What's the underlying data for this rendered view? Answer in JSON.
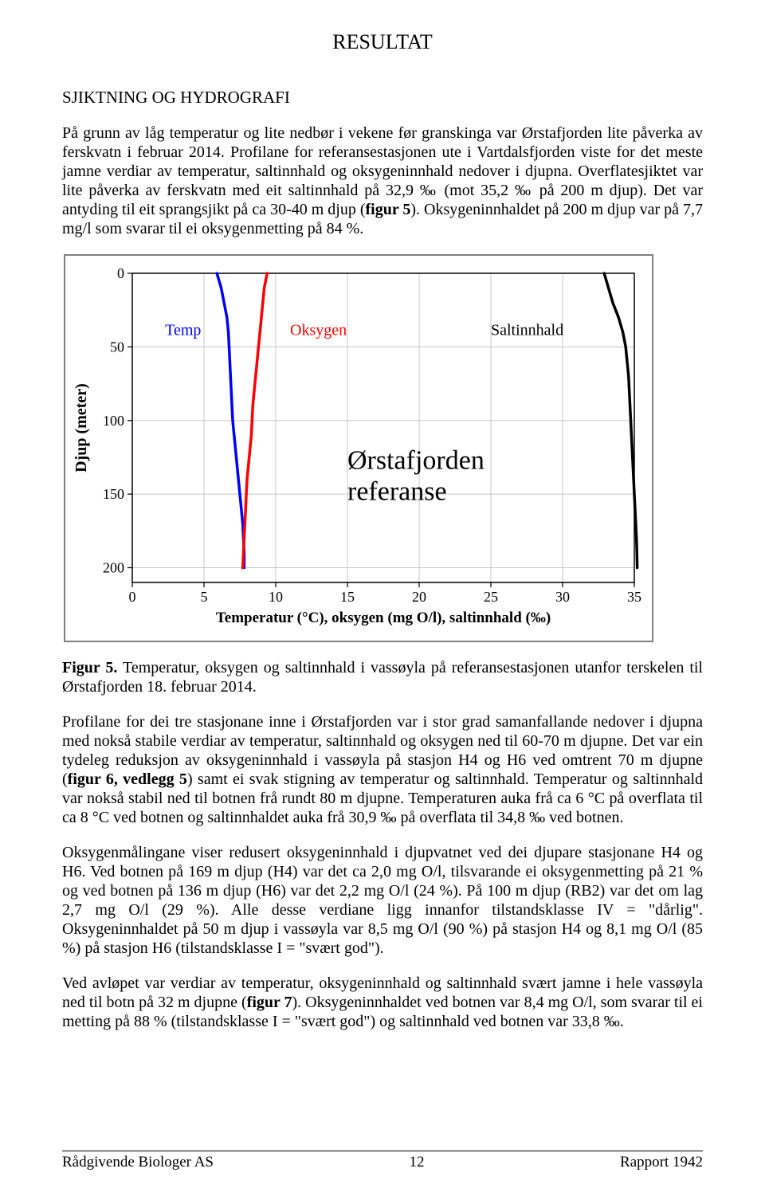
{
  "title_main": "RESULTAT",
  "section_heading": "SJIKTNING OG HYDROGRAFI",
  "para1": "På grunn av låg temperatur og lite nedbør i vekene før granskinga var Ørstafjorden lite påverka av ferskvatn i februar 2014. Profilane for referansestasjonen ute i Vartdalsfjorden viste for det meste jamne verdiar av temperatur, saltinnhald og oksygeninnhald nedover i djupna. Overflatesjiktet var lite påverka av ferskvatn med eit saltinnhald på 32,9 ‰ (mot 35,2 ‰ på 200 m djup). Det var antyding til eit sprangsjikt på ca 30-40 m djup (",
  "para1_fig": "figur 5",
  "para1_tail": "). Oksygeninnhaldet på 200 m djup var på 7,7 mg/l som svarar til ei oksygenmetting på 84 %.",
  "caption_strong": "Figur 5.",
  "caption_text": " Temperatur, oksygen og saltinnhald i vassøyla på referansestasjonen utanfor terskelen til Ørstafjorden 18. februar 2014.",
  "para2_a": "Profilane for dei tre stasjonane inne i Ørstafjorden var i stor grad samanfallande nedover i djupna med nokså stabile verdiar av temperatur, saltinnhald og oksygen ned til 60-70 m djupne. Det var ein tydeleg reduksjon av oksygeninnhald i vassøyla på stasjon H4 og H6 ved omtrent 70 m djupne (",
  "para2_fig": "figur 6, vedlegg 5",
  "para2_b": ") samt ei svak stigning av temperatur og saltinnhald. Temperatur og saltinnhald var nokså stabil ned til botnen frå rundt 80 m djupne. Temperaturen auka frå ca 6 °C på overflata til ca 8 °C ved botnen og saltinnhaldet auka frå 30,9 ‰ på overflata til 34,8 ‰ ved botnen.",
  "para3": "Oksygenmålingane viser redusert oksygeninnhald i djupvatnet ved dei djupare stasjonane H4 og H6. Ved botnen på 169 m djup (H4) var det ca 2,0 mg O/l, tilsvarande ei oksygenmetting på 21 % og ved botnen på 136 m djup (H6) var det 2,2 mg O/l (24 %). På 100 m djup (RB2) var det om lag 2,7 mg O/l (29 %). Alle desse verdiane ligg innanfor tilstandsklasse IV = \"dårlig\". Oksygeninnhaldet på 50 m djup i vassøyla var 8,5 mg O/l (90 %) på stasjon H4 og 8,1 mg O/l (85 %) på stasjon H6 (tilstandsklasse I = \"svært god\").",
  "para4_a": "Ved avløpet var verdiar av temperatur, oksygeninnhald og saltinnhald svært jamne i hele vassøyla ned til botn på 32 m djupne (",
  "para4_fig": "figur 7",
  "para4_b": "). Oksygeninnhaldet ved botnen var 8,4 mg O/l, som svarar til ei metting på 88 % (tilstandsklasse I = \"svært god\") og saltinnhald ved botnen var 33,8 ‰.",
  "footer_left": "Rådgivende Biologer AS",
  "footer_center": "12",
  "footer_right": "Rapport 1942",
  "chart": {
    "type": "line-profile",
    "plot_bg": "#ffffff",
    "axis_color": "#000000",
    "grid_color": "#c8c8c8",
    "y_label": "Djup (meter)",
    "y_label_fontsize": 20,
    "y_label_fontweight": "bold",
    "x_label": "Temperatur (°C), oksygen (mg O/l), saltinnhald (‰)",
    "x_label_fontsize": 19,
    "x_label_fontweight": "bold",
    "x_ticks": [
      0,
      5,
      10,
      15,
      20,
      25,
      30,
      35
    ],
    "y_ticks": [
      0,
      50,
      100,
      150,
      200
    ],
    "xlim": [
      0,
      35
    ],
    "ylim": [
      0,
      210
    ],
    "tick_fontsize": 18,
    "series": {
      "temp": {
        "label": "Temp",
        "color": "#0000ff",
        "width": 3.5,
        "values_x": [
          5.9,
          6.2,
          6.4,
          6.6,
          6.7,
          6.75,
          6.8,
          6.85,
          6.9,
          6.95,
          7.0,
          7.1,
          7.2,
          7.3,
          7.4,
          7.5,
          7.6,
          7.7,
          7.75,
          7.8,
          7.8
        ],
        "values_y": [
          0,
          10,
          20,
          30,
          40,
          50,
          60,
          70,
          80,
          90,
          100,
          110,
          120,
          130,
          140,
          150,
          160,
          170,
          180,
          190,
          200
        ]
      },
      "oksygen": {
        "label": "Oksygen",
        "color": "#ff0000",
        "width": 3.5,
        "values_x": [
          9.4,
          9.2,
          9.1,
          9.0,
          8.9,
          8.8,
          8.7,
          8.6,
          8.5,
          8.4,
          8.35,
          8.3,
          8.2,
          8.1,
          8.0,
          7.95,
          7.9,
          7.85,
          7.8,
          7.75,
          7.7
        ],
        "values_y": [
          0,
          10,
          20,
          30,
          40,
          50,
          60,
          70,
          80,
          90,
          100,
          110,
          120,
          130,
          140,
          150,
          160,
          170,
          180,
          190,
          200
        ]
      },
      "salt": {
        "label": "Saltinnhald",
        "color": "#000000",
        "width": 3.5,
        "values_x": [
          32.9,
          33.2,
          33.5,
          33.9,
          34.2,
          34.4,
          34.5,
          34.6,
          34.65,
          34.7,
          34.75,
          34.8,
          34.85,
          34.9,
          34.95,
          35.0,
          35.05,
          35.1,
          35.15,
          35.18,
          35.2
        ],
        "values_y": [
          0,
          10,
          20,
          30,
          40,
          50,
          60,
          70,
          80,
          90,
          100,
          110,
          120,
          130,
          140,
          150,
          160,
          170,
          180,
          190,
          200
        ]
      }
    },
    "center_text_line1": "Ørstafjorden",
    "center_text_line2": "referanse",
    "center_text_fontsize": 34
  }
}
